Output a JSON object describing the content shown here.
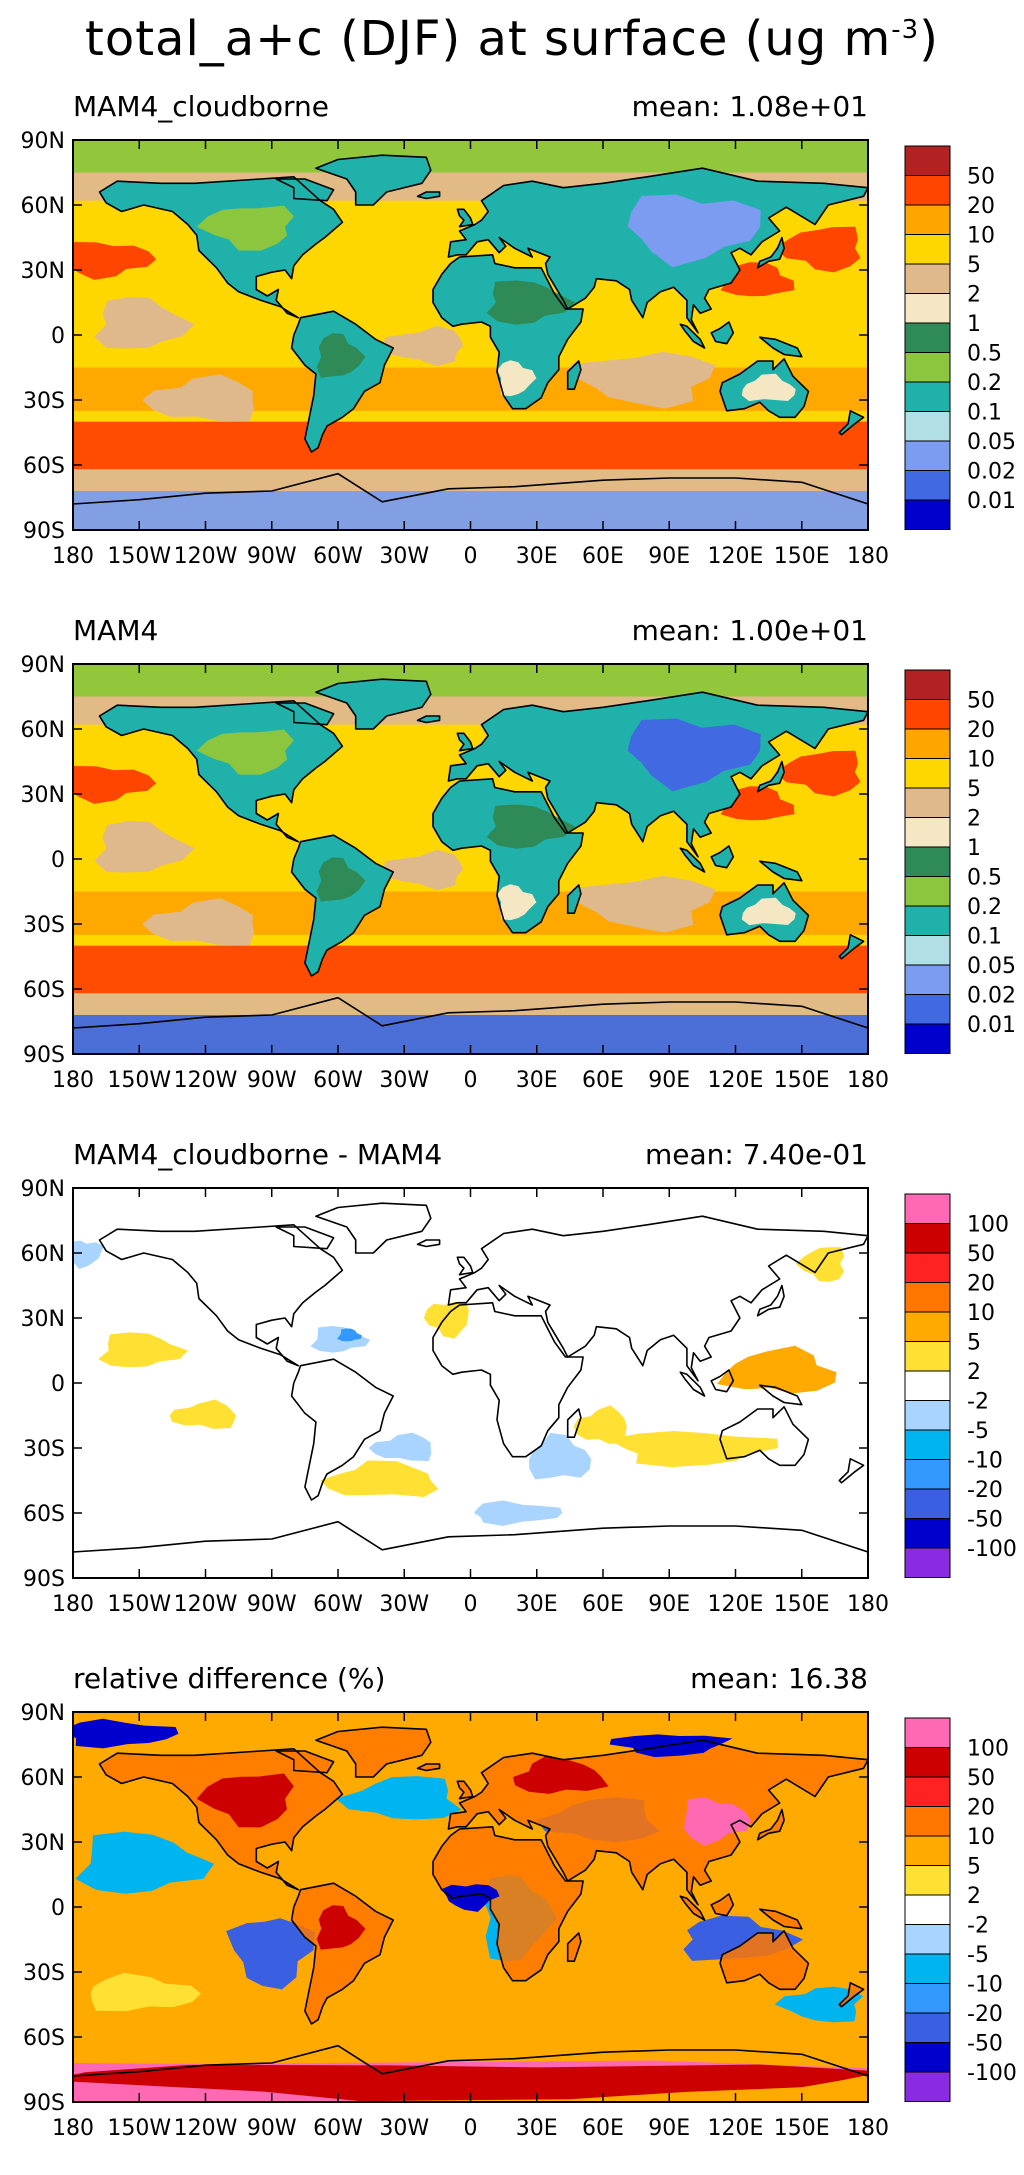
{
  "figure": {
    "title": "total_a+c (DJF) at surface (ug m",
    "title_superscript": "-3",
    "title_close": ")"
  },
  "chart_data": [
    {
      "type": "heatmap",
      "title": "MAM4_cloudborne",
      "stat_text": "mean: 1.08e+01",
      "mean_value": 10.8,
      "x_ticks": [
        "180",
        "150W",
        "120W",
        "90W",
        "60W",
        "30W",
        "0",
        "30E",
        "60E",
        "90E",
        "120E",
        "150E",
        "180"
      ],
      "y_ticks": [
        "90N",
        "60N",
        "30N",
        "0",
        "30S",
        "60S",
        "90S"
      ],
      "xlim": [
        -180,
        180
      ],
      "ylim": [
        -90,
        90
      ],
      "colorbar_labels": [
        "50",
        "20",
        "10",
        "5",
        "2",
        "1",
        "0.5",
        "0.2",
        "0.1",
        "0.05",
        "0.02",
        "0.01"
      ],
      "colorbar_colors": [
        "#b22222",
        "#ff4500",
        "#ffa500",
        "#ffd700",
        "#dfb88c",
        "#f5e6c4",
        "#2e8b57",
        "#8cc63f",
        "#20b2aa",
        "#b0e0e6",
        "#7b9cf0",
        "#4169e1",
        "#0000cd"
      ],
      "dominant_levels": {
        "ocean": 10,
        "land": 0.2,
        "polar": 0.05
      }
    },
    {
      "type": "heatmap",
      "title": "MAM4",
      "stat_text": "mean: 1.00e+01",
      "mean_value": 10.0,
      "x_ticks": [
        "180",
        "150W",
        "120W",
        "90W",
        "60W",
        "30W",
        "0",
        "30E",
        "60E",
        "90E",
        "120E",
        "150E",
        "180"
      ],
      "y_ticks": [
        "90N",
        "60N",
        "30N",
        "0",
        "30S",
        "60S",
        "90S"
      ],
      "xlim": [
        -180,
        180
      ],
      "ylim": [
        -90,
        90
      ],
      "colorbar_labels": [
        "50",
        "20",
        "10",
        "5",
        "2",
        "1",
        "0.5",
        "0.2",
        "0.1",
        "0.05",
        "0.02",
        "0.01"
      ],
      "colorbar_colors": [
        "#b22222",
        "#ff4500",
        "#ffa500",
        "#ffd700",
        "#dfb88c",
        "#f5e6c4",
        "#2e8b57",
        "#8cc63f",
        "#20b2aa",
        "#b0e0e6",
        "#7b9cf0",
        "#4169e1",
        "#0000cd"
      ],
      "dominant_levels": {
        "ocean": 10,
        "land": 0.2,
        "polar": 0.02
      }
    },
    {
      "type": "heatmap",
      "title": "MAM4_cloudborne - MAM4",
      "stat_text": "mean: 7.40e-01",
      "mean_value": 0.74,
      "x_ticks": [
        "180",
        "150W",
        "120W",
        "90W",
        "60W",
        "30W",
        "0",
        "30E",
        "60E",
        "90E",
        "120E",
        "150E",
        "180"
      ],
      "y_ticks": [
        "90N",
        "60N",
        "30N",
        "0",
        "30S",
        "60S",
        "90S"
      ],
      "xlim": [
        -180,
        180
      ],
      "ylim": [
        -90,
        90
      ],
      "colorbar_labels": [
        "100",
        "50",
        "20",
        "10",
        "5",
        "2",
        "-2",
        "-5",
        "-10",
        "-20",
        "-50",
        "-100"
      ],
      "colorbar_colors": [
        "#ff69b4",
        "#cc0000",
        "#ff2222",
        "#ff7700",
        "#ffaa00",
        "#ffe033",
        "#ffffff",
        "#a8d4ff",
        "#00b4f0",
        "#3399ff",
        "#3a5fe0",
        "#0000cd",
        "#8a2be2"
      ],
      "dominant_levels": {
        "background": 0
      }
    },
    {
      "type": "heatmap",
      "title": "relative difference (%)",
      "stat_text": "mean: 16.38",
      "mean_value": 16.38,
      "x_ticks": [
        "180",
        "150W",
        "120W",
        "90W",
        "60W",
        "30W",
        "0",
        "30E",
        "60E",
        "90E",
        "120E",
        "150E",
        "180"
      ],
      "y_ticks": [
        "90N",
        "60N",
        "30N",
        "0",
        "30S",
        "60S",
        "90S"
      ],
      "xlim": [
        -180,
        180
      ],
      "ylim": [
        -90,
        90
      ],
      "colorbar_labels": [
        "100",
        "50",
        "20",
        "10",
        "5",
        "2",
        "-2",
        "-5",
        "-10",
        "-20",
        "-50",
        "-100"
      ],
      "colorbar_colors": [
        "#ff69b4",
        "#cc0000",
        "#ff2222",
        "#ff7700",
        "#ffaa00",
        "#ffe033",
        "#ffffff",
        "#a8d4ff",
        "#00b4f0",
        "#3399ff",
        "#3a5fe0",
        "#0000cd",
        "#8a2be2"
      ],
      "dominant_levels": {
        "land": 20,
        "ocean": 10
      }
    }
  ]
}
